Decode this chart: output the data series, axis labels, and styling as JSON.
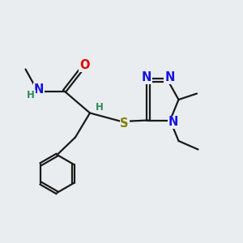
{
  "bg_color": "#eaedef",
  "bond_color": "#1a1a1a",
  "N_color": "#1414e0",
  "O_color": "#dd0000",
  "S_color": "#7f7f00",
  "H_color": "#2e8b57",
  "lw": 1.6,
  "figsize": [
    3.0,
    3.0
  ],
  "dpi": 100,
  "xlim": [
    0,
    10
  ],
  "ylim": [
    0,
    10
  ]
}
